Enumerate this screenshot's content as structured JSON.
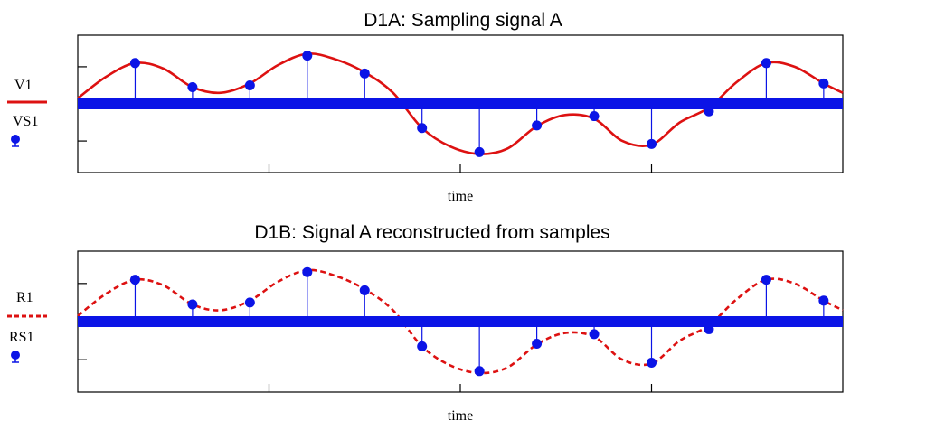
{
  "colors": {
    "signal": "#dd1111",
    "samples": "#0b14e6",
    "baseline": "#0b14e6",
    "frame": "#000000"
  },
  "chart_data": [
    {
      "type": "line",
      "title": "D1A: Sampling signal A",
      "xlabel": "time",
      "ylabel": "",
      "xlim": [
        0,
        1
      ],
      "ylim": [
        -1.85,
        1.85
      ],
      "y_ticks": [
        -1,
        1
      ],
      "x_ticks": [
        0.25,
        0.5,
        0.75
      ],
      "grid": false,
      "legend_position": "left",
      "series": [
        {
          "name": "V1",
          "style": "solid",
          "x": [
            0,
            0.037,
            0.075,
            0.112,
            0.15,
            0.187,
            0.225,
            0.262,
            0.3,
            0.337,
            0.375,
            0.412,
            0.45,
            0.487,
            0.525,
            0.562,
            0.6,
            0.637,
            0.675,
            0.712,
            0.75,
            0.787,
            0.825,
            0.862,
            0.9,
            0.937,
            0.975,
            1
          ],
          "values": [
            0.15,
            0.73,
            1.1,
            0.95,
            0.45,
            0.3,
            0.55,
            1.05,
            1.35,
            1.2,
            0.85,
            0.3,
            -0.65,
            -1.15,
            -1.35,
            -1.2,
            -0.6,
            -0.3,
            -0.4,
            -1.0,
            -1.1,
            -0.5,
            -0.1,
            0.6,
            1.1,
            1.0,
            0.55,
            0.3
          ]
        },
        {
          "name": "VS1",
          "style": "stem",
          "x": [
            0.075,
            0.15,
            0.225,
            0.3,
            0.375,
            0.45,
            0.525,
            0.6,
            0.675,
            0.75,
            0.825,
            0.9,
            0.975
          ],
          "values": [
            1.1,
            0.45,
            0.5,
            1.3,
            0.82,
            -0.65,
            -1.3,
            -0.58,
            -0.33,
            -1.08,
            -0.2,
            1.1,
            0.55
          ]
        }
      ]
    },
    {
      "type": "line",
      "title": "D1B: Signal A reconstructed from samples",
      "xlabel": "time",
      "ylabel": "",
      "xlim": [
        0,
        1
      ],
      "ylim": [
        -1.85,
        1.85
      ],
      "y_ticks": [
        -1,
        1
      ],
      "x_ticks": [
        0.25,
        0.5,
        0.75
      ],
      "grid": false,
      "legend_position": "left",
      "series": [
        {
          "name": "R1",
          "style": "dashed",
          "x": [
            0,
            0.037,
            0.075,
            0.112,
            0.15,
            0.187,
            0.225,
            0.262,
            0.3,
            0.337,
            0.375,
            0.412,
            0.45,
            0.487,
            0.525,
            0.562,
            0.6,
            0.637,
            0.675,
            0.712,
            0.75,
            0.787,
            0.825,
            0.862,
            0.9,
            0.937,
            0.975,
            1
          ],
          "values": [
            0.15,
            0.73,
            1.1,
            0.95,
            0.45,
            0.3,
            0.55,
            1.05,
            1.35,
            1.2,
            0.85,
            0.3,
            -0.65,
            -1.15,
            -1.35,
            -1.2,
            -0.6,
            -0.3,
            -0.4,
            -1.0,
            -1.1,
            -0.5,
            -0.1,
            0.6,
            1.1,
            1.0,
            0.55,
            0.3
          ]
        },
        {
          "name": "RS1",
          "style": "stem",
          "x": [
            0.075,
            0.15,
            0.225,
            0.3,
            0.375,
            0.45,
            0.525,
            0.6,
            0.675,
            0.75,
            0.825,
            0.9,
            0.975
          ],
          "values": [
            1.1,
            0.45,
            0.5,
            1.3,
            0.82,
            -0.65,
            -1.3,
            -0.58,
            -0.33,
            -1.08,
            -0.2,
            1.1,
            0.55
          ]
        }
      ]
    }
  ]
}
